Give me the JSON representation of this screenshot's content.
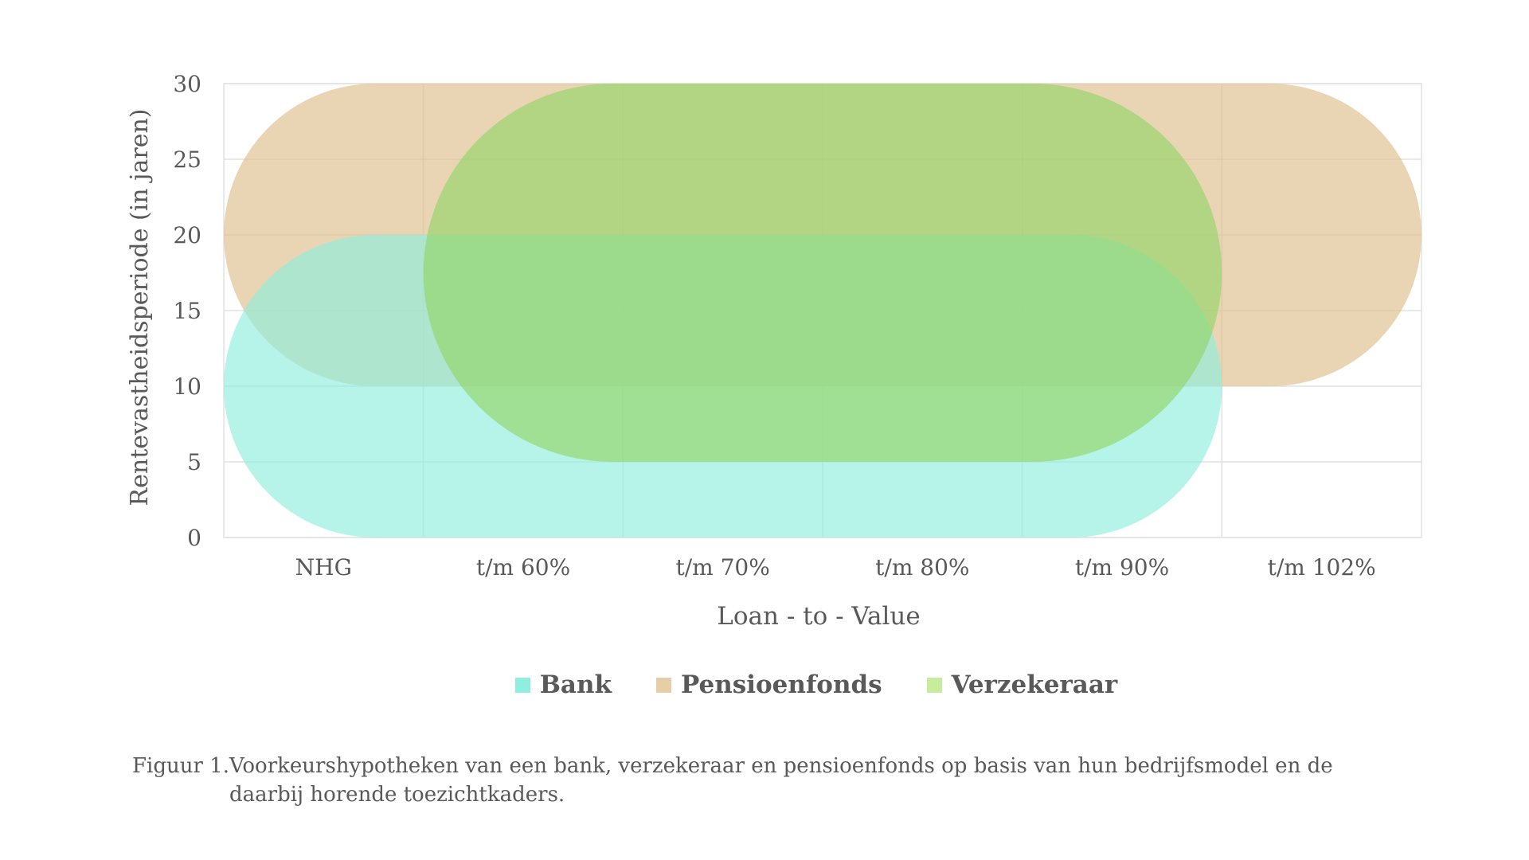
{
  "chart_data": {
    "type": "area",
    "xlabel": "Loan - to - Value",
    "ylabel": "Rentevastheidsperiode (in jaren)",
    "categories": [
      "NHG",
      "t/m 60%",
      "t/m 70%",
      "t/m 80%",
      "t/m 90%",
      "t/m 102%"
    ],
    "ylim": [
      0,
      30
    ],
    "yticks": [
      0,
      5,
      10,
      15,
      20,
      25,
      30
    ],
    "grid": true,
    "legend_position": "bottom",
    "series": [
      {
        "name": "Pensioenfondsen",
        "ltv_from": "NHG",
        "ltv_to": "t/m 102%",
        "y_min": 10,
        "y_max": 30,
        "color": "#ddbf8c"
      },
      {
        "name": "Bank",
        "ltv_from": "NHG",
        "ltv_to": "t/m 90%",
        "y_min": 0,
        "y_max": 20,
        "color": "#8feedd"
      },
      {
        "name": "Verzekeraar",
        "ltv_from": "t/m 60%",
        "ltv_to": "t/m 90%",
        "y_min": 5,
        "y_max": 30,
        "color": "#93d568"
      }
    ]
  },
  "legend": [
    {
      "label": "Bank",
      "color": "#8feedd"
    },
    {
      "label": "Pensioenfonds",
      "color": "#ddbf8c"
    },
    {
      "label": "Verzekeraar",
      "color": "#b9e88a"
    }
  ],
  "caption": {
    "prefix": "Figuur 1.",
    "text": "Voorkeurshypotheken van een bank, verzekeraar en pensioenfonds op basis van hun bedrijfsmodel en de daarbij horende toezichtkaders."
  }
}
